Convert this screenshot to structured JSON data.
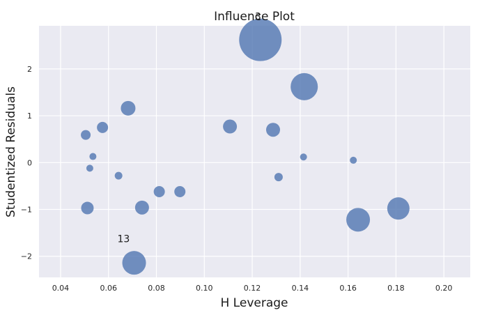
{
  "chart_data": {
    "type": "scatter",
    "title": "Influence Plot",
    "xlabel": "H Leverage",
    "ylabel": "Studentized Residuals",
    "xlim": [
      0.031,
      0.211
    ],
    "ylim": [
      -2.45,
      2.92
    ],
    "xticks": [
      0.04,
      0.06,
      0.08,
      0.1,
      0.12,
      0.14,
      0.16,
      0.18,
      0.2
    ],
    "xtick_labels": [
      "0.04",
      "0.06",
      "0.08",
      "0.10",
      "0.12",
      "0.14",
      "0.16",
      "0.18",
      "0.20"
    ],
    "yticks": [
      -2,
      -1,
      0,
      1,
      2
    ],
    "ytick_labels": [
      "−2",
      "−1",
      "0",
      "1",
      "2"
    ],
    "grid": true,
    "background_color": "#eaeaf2",
    "marker_color": "#4c72b0",
    "points": [
      {
        "x": 0.1234,
        "y": 2.62,
        "size": 30.5
      },
      {
        "x": 0.1417,
        "y": 1.62,
        "size": 19.5
      },
      {
        "x": 0.0707,
        "y": -2.14,
        "size": 17.0
      },
      {
        "x": 0.1642,
        "y": -1.22,
        "size": 17.0
      },
      {
        "x": 0.181,
        "y": -0.98,
        "size": 16.0
      },
      {
        "x": 0.0682,
        "y": 1.16,
        "size": 10.5
      },
      {
        "x": 0.1287,
        "y": 0.7,
        "size": 10.0
      },
      {
        "x": 0.074,
        "y": -0.96,
        "size": 10.0
      },
      {
        "x": 0.1107,
        "y": 0.77,
        "size": 10.0
      },
      {
        "x": 0.0512,
        "y": -0.97,
        "size": 9.0
      },
      {
        "x": 0.0575,
        "y": 0.75,
        "size": 8.0
      },
      {
        "x": 0.0898,
        "y": -0.62,
        "size": 8.0
      },
      {
        "x": 0.0812,
        "y": -0.62,
        "size": 8.0
      },
      {
        "x": 0.0505,
        "y": 0.59,
        "size": 7.0
      },
      {
        "x": 0.131,
        "y": -0.31,
        "size": 6.0
      },
      {
        "x": 0.0642,
        "y": -0.28,
        "size": 5.5
      },
      {
        "x": 0.1414,
        "y": 0.12,
        "size": 5.0
      },
      {
        "x": 0.0535,
        "y": 0.13,
        "size": 5.0
      },
      {
        "x": 0.0522,
        "y": -0.12,
        "size": 5.0
      },
      {
        "x": 0.1622,
        "y": 0.05,
        "size": 5.0
      }
    ],
    "annotations": [
      {
        "text": "3",
        "x": 0.1224,
        "y": 3.05
      },
      {
        "text": "13",
        "x": 0.0663,
        "y": -1.7
      }
    ]
  }
}
